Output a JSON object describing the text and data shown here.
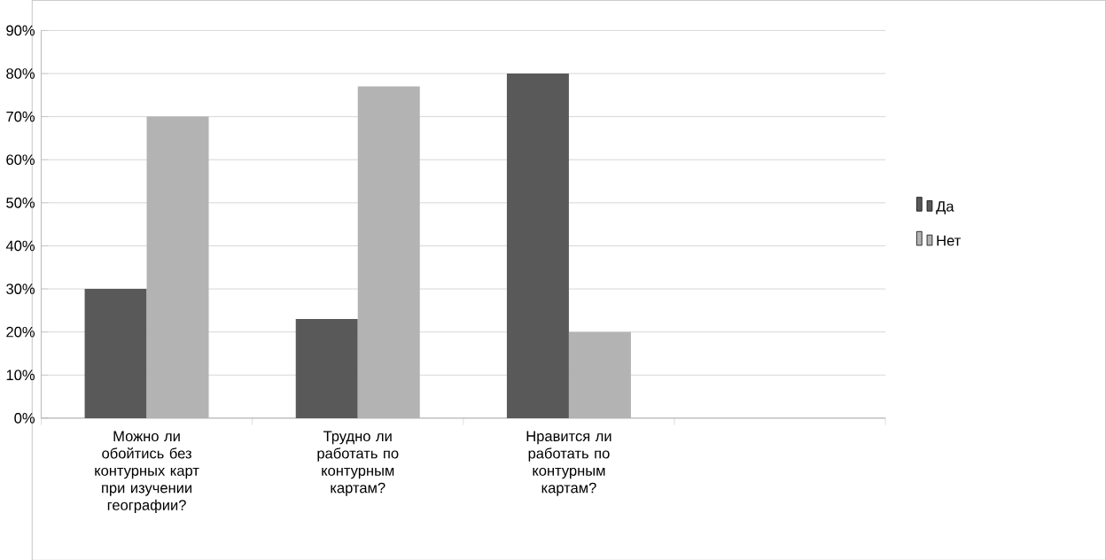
{
  "chart_data": {
    "type": "bar",
    "categories": [
      "Можно ли обойтись без контурных карт при изучении географии?",
      "Трудно ли работать по контурным картам?",
      "Нравится ли работать по контурным картам?",
      null
    ],
    "series": [
      {
        "name": "Да",
        "color": "#595959",
        "values": [
          30,
          23,
          80,
          null
        ]
      },
      {
        "name": "Нет",
        "color": "#b3b3b3",
        "values": [
          70,
          77,
          20,
          null
        ]
      }
    ],
    "ylim": [
      0,
      90
    ],
    "yticks": [
      {
        "value": 0,
        "label": "0%"
      },
      {
        "value": 10,
        "label": "10%"
      },
      {
        "value": 20,
        "label": "20%"
      },
      {
        "value": 30,
        "label": "30%"
      },
      {
        "value": 40,
        "label": "40%"
      },
      {
        "value": 50,
        "label": "50%"
      },
      {
        "value": 60,
        "label": "60%"
      },
      {
        "value": 70,
        "label": "70%"
      },
      {
        "value": 80,
        "label": "80%"
      },
      {
        "value": 90,
        "label": "90%"
      }
    ],
    "grid": "y",
    "legend": "right"
  }
}
